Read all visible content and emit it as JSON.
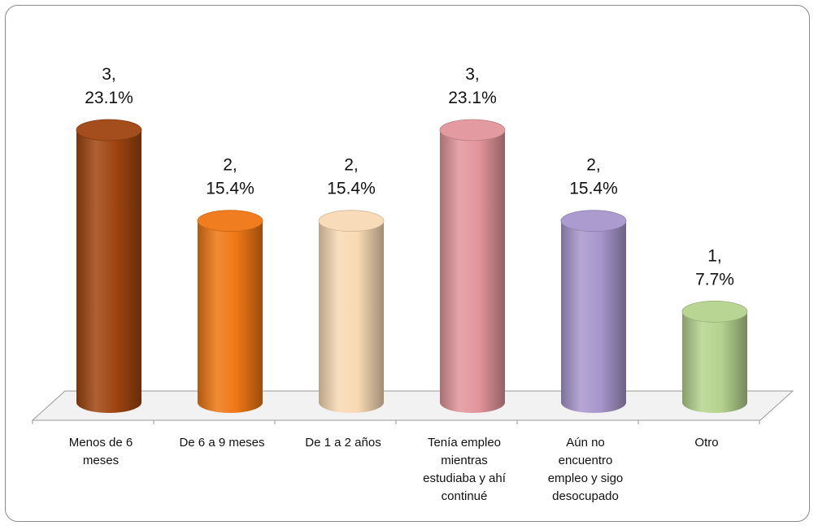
{
  "chart_data": {
    "type": "bar",
    "title": "",
    "xlabel": "",
    "ylabel": "",
    "ylim": [
      0,
      3
    ],
    "grid": false,
    "legend": "none",
    "categories": [
      [
        "Menos de 6",
        "meses"
      ],
      [
        "De 6 a 9 meses"
      ],
      [
        "De 1 a 2 años"
      ],
      [
        "Tenía empleo",
        "mientras",
        "estudiaba y ahí",
        "continué"
      ],
      [
        "Aún no",
        "encuentro",
        "empleo y sigo",
        "desocupado"
      ],
      [
        "Otro"
      ]
    ],
    "values": [
      3,
      2,
      2,
      3,
      2,
      1
    ],
    "percents": [
      "23.1%",
      "15.4%",
      "15.4%",
      "23.1%",
      "15.4%",
      "7.7%"
    ],
    "data_labels": [
      [
        "3,",
        "23.1%"
      ],
      [
        "2,",
        "15.4%"
      ],
      [
        "2,",
        "15.4%"
      ],
      [
        "3,",
        "23.1%"
      ],
      [
        "2,",
        "15.4%"
      ],
      [
        "1,",
        "7.7%"
      ]
    ],
    "colors": [
      "#9e4510",
      "#ef7714",
      "#f8d9b4",
      "#e2959b",
      "#a896cc",
      "#b5d38e"
    ]
  }
}
